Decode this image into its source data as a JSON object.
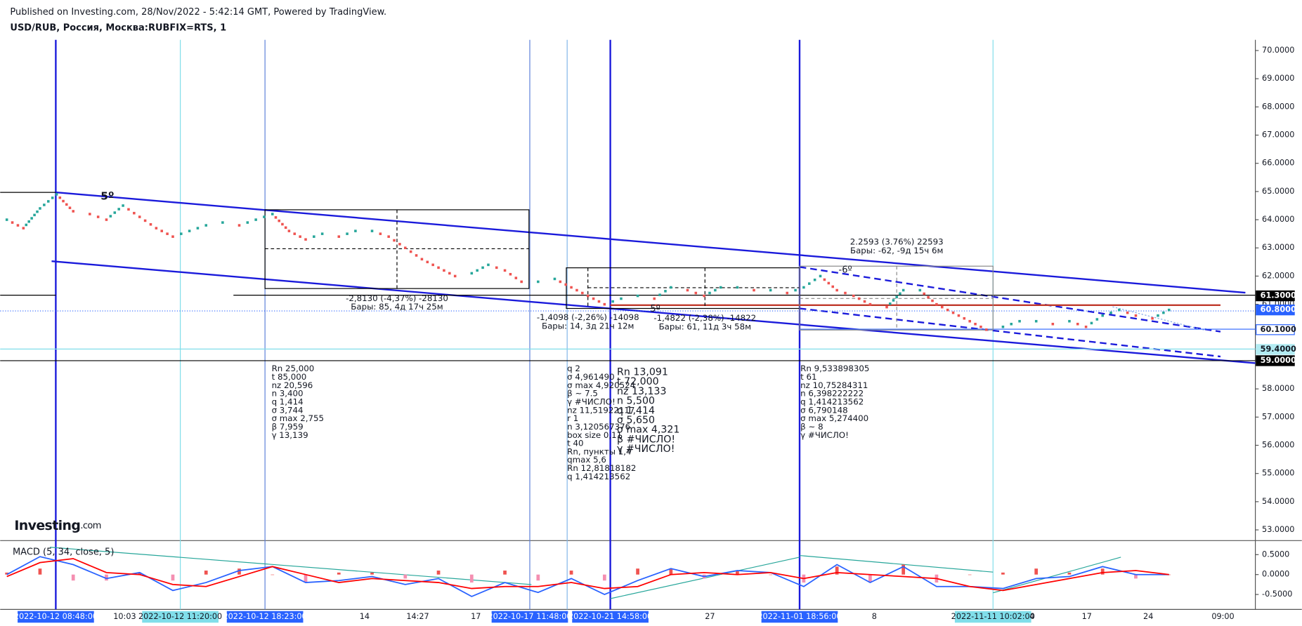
{
  "header": {
    "published": "Published on Investing.com, 28/Nov/2022 - 5:42:14 GMT, Powered by TradingView.",
    "symbol": "USD/RUB, Россия, Москва:RUBFIX=RTS, 1",
    "logo": "Investing",
    "logo_suffix": ".com"
  },
  "chart_data": [
    {
      "type": "renko",
      "ylim": [
        52.62,
        70.38
      ],
      "yticks": [
        {
          "value": 53,
          "label": "53.0000"
        },
        {
          "value": 54,
          "label": "54.0000"
        },
        {
          "value": 55,
          "label": "55.0000"
        },
        {
          "value": 56,
          "label": "56.0000"
        },
        {
          "value": 57,
          "label": "57.0000"
        },
        {
          "value": 58,
          "label": "58.0000"
        },
        {
          "value": 59,
          "label": "59.0000"
        },
        {
          "value": 60,
          "label": "60.0000"
        },
        {
          "value": 61,
          "label": "61.0000"
        },
        {
          "value": 62,
          "label": "62.0000"
        },
        {
          "value": 63,
          "label": "63.0000"
        },
        {
          "value": 64,
          "label": "64.0000"
        },
        {
          "value": 65,
          "label": "65.0000"
        },
        {
          "value": 66,
          "label": "66.0000"
        },
        {
          "value": 67,
          "label": "67.0000"
        },
        {
          "value": 68,
          "label": "68.0000"
        },
        {
          "value": 69,
          "label": "69.0000"
        },
        {
          "value": 70,
          "label": "70.0000"
        }
      ],
      "up_color": "#26a69a",
      "down_color": "#ef5350",
      "values": [
        64.0,
        63.7,
        64.4,
        64.9,
        64.3,
        64.2,
        64.0,
        64.5,
        64.1,
        63.7,
        63.4,
        63.6,
        63.8,
        63.9,
        63.8,
        64.0,
        64.2,
        63.6,
        63.3,
        63.5,
        63.4,
        63.6,
        63.6,
        63.4,
        63.0,
        62.6,
        62.3,
        62.0,
        62.1,
        62.4,
        62.2,
        61.8,
        61.8,
        61.9,
        61.6,
        61.3,
        61.0,
        61.2,
        61.3,
        61.2,
        61.6,
        61.5,
        61.3,
        61.6,
        61.6,
        61.5,
        61.5,
        61.4,
        61.6,
        62.0,
        61.5,
        61.3,
        61.0,
        60.9,
        61.5,
        61.5,
        61.0,
        60.7,
        60.4,
        60.1,
        60.2,
        60.4,
        60.4,
        60.3,
        60.4,
        60.2,
        60.6,
        60.8,
        60.6,
        60.5,
        60.8
      ],
      "price_labels": [
        {
          "value": 61.3,
          "label": "61.3000",
          "color": "#000000"
        },
        {
          "value": 60.8,
          "label": "60.8000",
          "color": "#2962ff"
        },
        {
          "value": 60.1,
          "label": "60.1000",
          "color": "#ffffff"
        },
        {
          "value": 59.4,
          "label": "59.4000",
          "color": "#b2ebf2"
        },
        {
          "value": 59.0,
          "label": "59.0000",
          "color": "#000000"
        }
      ],
      "xlabels": [
        "2022-10-12 08:48:00",
        "10:03",
        "2022-10-12 11:20:00",
        "2022-10-12 18:23:00",
        "14",
        "14:27",
        "17",
        "2022-10-17 11:48:00",
        "2022-10-21 14:58:00",
        "27",
        "2022-11-01 18:56:00",
        "8",
        "2022-11-11 10:02:00",
        "4",
        "17",
        "24",
        "09:00"
      ],
      "annotations": {
        "angle1": "5º",
        "angle2": "-6º",
        "angle3": "5º",
        "m1": [
          "-2,8130 (-4,37%) -28130",
          "Бары: 85, 4д 17ч 25м"
        ],
        "m2": [
          "-1,4098 (-2,26%) -14098",
          "Бары: 14, 3д 21ч 12м"
        ],
        "m3": [
          "-1,4822 (-2,38%) -14822",
          "Бары: 61, 11д 3ч 58м"
        ],
        "m4": [
          "2.2593 (3.76%) 22593",
          "Бары: -62, -9д 15ч 6м"
        ],
        "blockA": [
          "Rn 25,000",
          "t 85,000",
          "nz 20,596",
          "n 3,400",
          "q 1,414",
          "σ 3,744",
          "σ max 2,755",
          "β 7,959",
          "γ 13,139"
        ],
        "blockB": [
          "q 2",
          "σ 4,961490",
          "σ max 4,920524",
          "β ~ 7.5",
          "γ #ЧИСЛО!",
          "nz 11,51922117",
          "r 1",
          "n 3,120567376",
          "box size 0,11",
          "t 40",
          "Rn, пункты 1,4",
          "qmax 5,6",
          "Rn 12,81818182",
          "q 1,414213562"
        ],
        "blockC": [
          "Rn 13,091",
          "t 72,000",
          "nz 13,133",
          "n 5,500",
          "q 1,414",
          "σ 5,650",
          "σ max 4,321",
          "β #ЧИСЛО!",
          "γ #ЧИСЛО!"
        ],
        "blockD": [
          "Rn 9,533898305",
          "t 61",
          "nz 10,75284311",
          "n 6,398222222",
          "q 1,414213562",
          "σ 6,790148",
          "σ max 5,274400",
          "β ~ 8",
          "γ #ЧИСЛО!"
        ]
      }
    },
    {
      "type": "macd",
      "title": "MACD (5, 34, close, 5)",
      "ylim": [
        -0.875,
        0.79
      ],
      "yticks": [
        {
          "value": 0.5,
          "label": "0.5000"
        },
        {
          "value": 0,
          "label": "0.0000"
        },
        {
          "value": -0.5,
          "label": "-0.5000"
        }
      ],
      "series": [
        {
          "name": "MACD",
          "color": "#2962ff",
          "values": [
            0.0,
            0.45,
            0.25,
            -0.1,
            0.05,
            -0.4,
            -0.2,
            0.1,
            0.2,
            -0.2,
            -0.15,
            -0.05,
            -0.25,
            -0.1,
            -0.55,
            -0.2,
            -0.45,
            -0.1,
            -0.5,
            -0.15,
            0.15,
            -0.05,
            0.1,
            0.05,
            -0.3,
            0.25,
            -0.2,
            0.2,
            -0.3,
            -0.3,
            -0.35,
            -0.1,
            -0.05,
            0.2,
            0.0,
            0.0
          ]
        },
        {
          "name": "Signal",
          "color": "#ff0000",
          "values": [
            -0.05,
            0.3,
            0.4,
            0.05,
            0.0,
            -0.25,
            -0.3,
            -0.05,
            0.2,
            0.0,
            -0.2,
            -0.1,
            -0.15,
            -0.2,
            -0.35,
            -0.3,
            -0.3,
            -0.2,
            -0.35,
            -0.3,
            0.0,
            0.05,
            0.0,
            0.05,
            -0.1,
            0.05,
            0.0,
            -0.05,
            -0.1,
            -0.3,
            -0.4,
            -0.25,
            -0.1,
            0.05,
            0.1,
            0.0
          ]
        },
        {
          "name": "Histogram",
          "color": "#ef5350",
          "values": [
            0.05,
            0.15,
            -0.15,
            -0.15,
            0.05,
            -0.15,
            0.1,
            0.15,
            0.0,
            -0.2,
            0.05,
            0.05,
            -0.1,
            0.1,
            -0.2,
            0.1,
            -0.15,
            0.1,
            -0.15,
            0.15,
            0.15,
            -0.1,
            0.1,
            0.0,
            -0.2,
            0.2,
            -0.2,
            0.25,
            -0.2,
            0.0,
            0.05,
            0.15,
            0.05,
            0.15,
            -0.1,
            0.0
          ]
        }
      ]
    }
  ]
}
